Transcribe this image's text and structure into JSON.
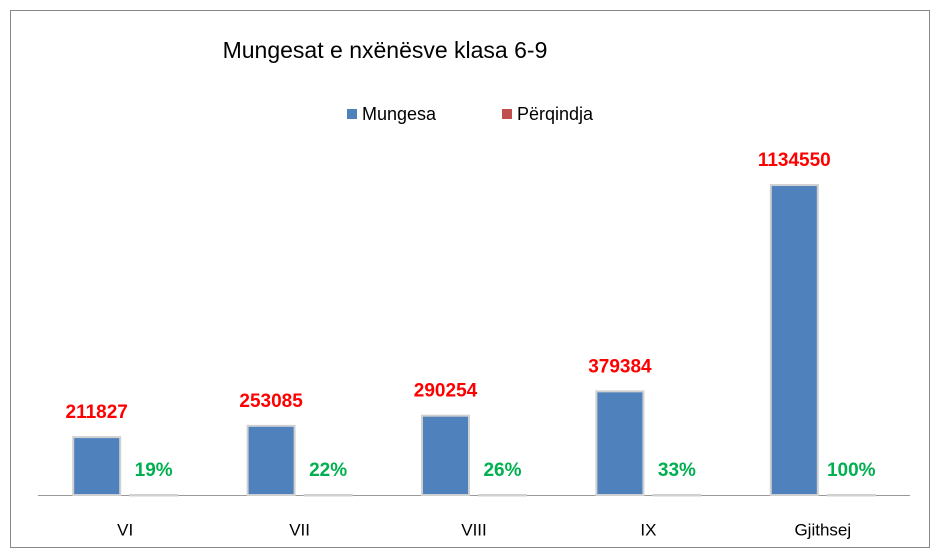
{
  "chart_data": {
    "type": "bar",
    "title": "Mungesat e nxënësve klasa 6-9",
    "categories": [
      "VI",
      "VII",
      "VIII",
      "IX",
      "Gjithsej"
    ],
    "series": [
      {
        "name": "Mungesa",
        "color": "#4f81bd",
        "label_color": "#ff0000",
        "values": [
          211827,
          253085,
          290254,
          379384,
          1134550
        ]
      },
      {
        "name": "Përqindja",
        "color": "#c0504d",
        "label_color": "#00b050",
        "values": [
          19,
          22,
          26,
          33,
          100
        ],
        "value_labels": [
          "19%",
          "22%",
          "26%",
          "33%",
          "100%"
        ]
      }
    ],
    "ylim": [
      0,
      1250000
    ],
    "legend": "top"
  }
}
